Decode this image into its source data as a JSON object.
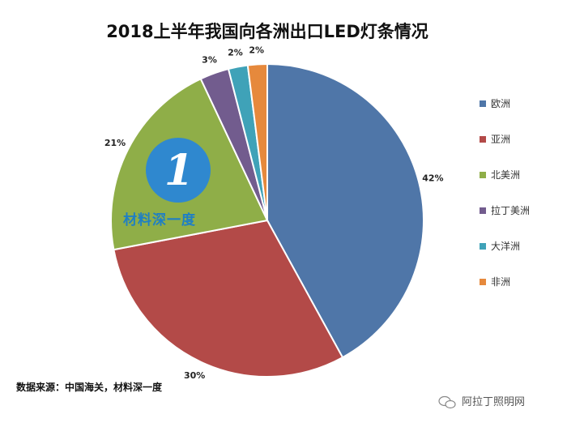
{
  "chart_data": {
    "type": "pie",
    "title": "2018上半年我国向各洲出口LED灯条情况",
    "categories": [
      "欧洲",
      "亚洲",
      "北美洲",
      "拉丁美洲",
      "大洋洲",
      "非洲"
    ],
    "values": [
      42,
      30,
      21,
      3,
      2,
      2
    ],
    "labels": [
      "42%",
      "30%",
      "21%",
      "3%",
      "2%",
      "2%"
    ],
    "colors": [
      "#4f76a8",
      "#b34a48",
      "#8fae48",
      "#725c8e",
      "#3fa2b8",
      "#e6893c"
    ],
    "unit": "%",
    "legend_position": "right"
  },
  "source_note": "数据来源：中国海关，材料深一度",
  "watermark": {
    "logo_glyph": "1",
    "text": "材料深一度"
  },
  "badge": {
    "icon": "wechat-icon",
    "text": "阿拉丁照明网"
  }
}
